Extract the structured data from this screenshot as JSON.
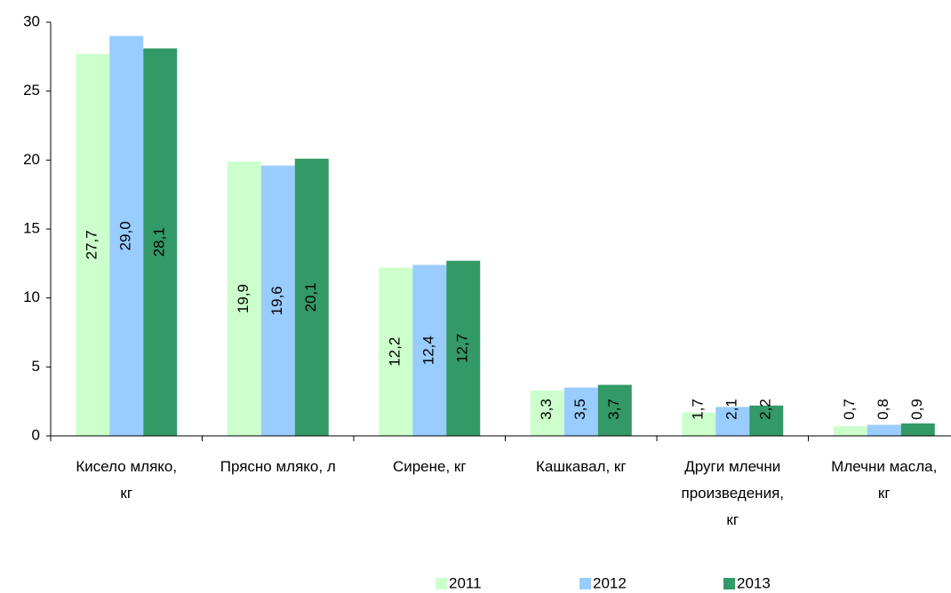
{
  "chart_data": {
    "type": "bar",
    "categories": [
      "Кисело мляко,\nкг",
      "Прясно мляко, л",
      "Сирене, кг",
      "Кашкавал, кг",
      "Други млечни\nпроизведения,\nкг",
      "Млечни масла,\nкг"
    ],
    "series": [
      {
        "name": "2011",
        "color": "#ccffcc",
        "values": [
          27.7,
          19.9,
          12.2,
          3.3,
          1.7,
          0.7
        ],
        "value_labels": [
          "27,7",
          "19,9",
          "12,2",
          "3,3",
          "1,7",
          "0,7"
        ]
      },
      {
        "name": "2012",
        "color": "#99ccff",
        "values": [
          29.0,
          19.6,
          12.4,
          3.5,
          2.1,
          0.8
        ],
        "value_labels": [
          "29,0",
          "19,6",
          "12,4",
          "3,5",
          "2,1",
          "0,8"
        ]
      },
      {
        "name": "2013",
        "color": "#339966",
        "values": [
          28.1,
          20.1,
          12.7,
          3.7,
          2.2,
          0.9
        ],
        "value_labels": [
          "28,1",
          "20,1",
          "12,7",
          "3,7",
          "2,2",
          "0,9"
        ]
      }
    ],
    "ylim": [
      0,
      30
    ],
    "yticks": [
      0,
      5,
      10,
      15,
      20,
      25,
      30
    ],
    "legend": "bottom"
  }
}
